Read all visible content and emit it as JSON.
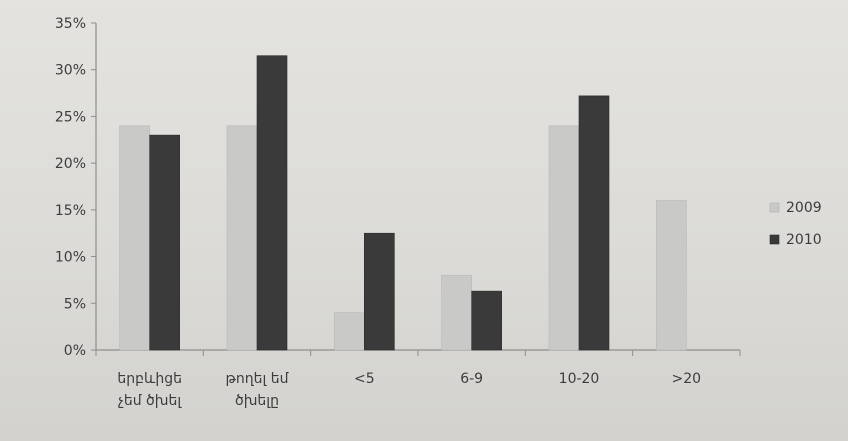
{
  "chart_data": {
    "type": "bar",
    "title": "",
    "xlabel": "",
    "ylabel": "",
    "categories": [
      [
        "երբևիցե",
        "չեմ ծխել"
      ],
      [
        "թողել եմ",
        "ծխելը"
      ],
      [
        "<5"
      ],
      [
        "6-9"
      ],
      [
        "10-20"
      ],
      [
        ">20"
      ]
    ],
    "series": [
      {
        "name": "2009",
        "color": "#c9c9c7",
        "values": [
          24,
          24,
          4,
          8,
          24,
          16
        ]
      },
      {
        "name": "2010",
        "color": "#3a3a3b",
        "values": [
          23,
          31.5,
          12.5,
          6.3,
          27.2,
          null
        ]
      }
    ],
    "ylim": [
      0,
      35
    ],
    "y_ticks": [
      "0%",
      "5%",
      "10%",
      "15%",
      "20%",
      "25%",
      "30%",
      "35%"
    ],
    "y_tick_values": [
      0,
      5,
      10,
      15,
      20,
      25,
      30,
      35
    ],
    "grid": false,
    "legend_position": "right"
  }
}
